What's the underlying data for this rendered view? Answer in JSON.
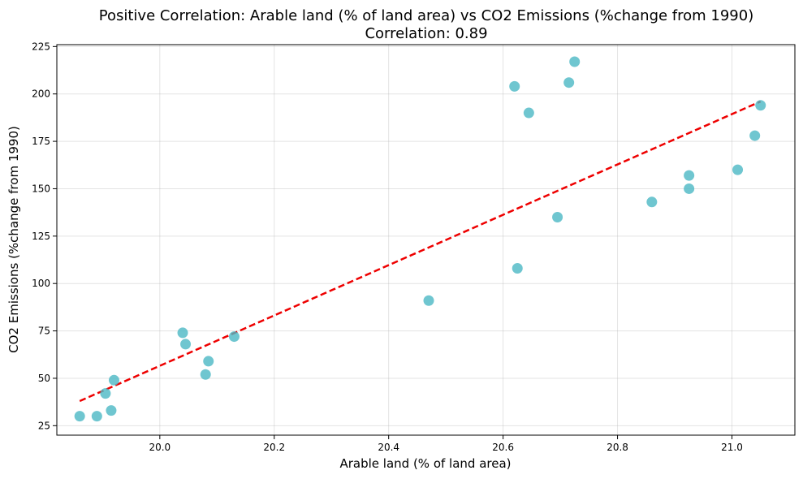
{
  "chart_data": {
    "type": "scatter",
    "title": "Positive Correlation: Arable land (% of land area) vs CO2 Emissions (%change from 1990)",
    "subtitle": "Correlation: 0.89",
    "xlabel": "Arable land (% of land area)",
    "ylabel": "CO2 Emissions (%change from 1990)",
    "xlim": [
      19.82,
      21.11
    ],
    "ylim": [
      20,
      226
    ],
    "xticks": [
      20.0,
      20.2,
      20.4,
      20.6,
      20.8,
      21.0
    ],
    "xtick_labels": [
      "20.0",
      "20.2",
      "20.4",
      "20.6",
      "20.8",
      "21.0"
    ],
    "yticks": [
      25,
      50,
      75,
      100,
      125,
      150,
      175,
      200,
      225
    ],
    "ytick_labels": [
      "25",
      "50",
      "75",
      "100",
      "125",
      "150",
      "175",
      "200",
      "225"
    ],
    "grid": true,
    "point_color": "#4bb8c4",
    "trend_color": "#ee0000",
    "points": [
      {
        "x": 19.86,
        "y": 30
      },
      {
        "x": 19.89,
        "y": 30
      },
      {
        "x": 19.905,
        "y": 42
      },
      {
        "x": 19.915,
        "y": 33
      },
      {
        "x": 19.92,
        "y": 49
      },
      {
        "x": 20.04,
        "y": 74
      },
      {
        "x": 20.045,
        "y": 68
      },
      {
        "x": 20.08,
        "y": 52
      },
      {
        "x": 20.085,
        "y": 59
      },
      {
        "x": 20.13,
        "y": 72
      },
      {
        "x": 20.47,
        "y": 91
      },
      {
        "x": 20.62,
        "y": 204
      },
      {
        "x": 20.625,
        "y": 108
      },
      {
        "x": 20.645,
        "y": 190
      },
      {
        "x": 20.695,
        "y": 135
      },
      {
        "x": 20.715,
        "y": 206
      },
      {
        "x": 20.725,
        "y": 217
      },
      {
        "x": 20.86,
        "y": 143
      },
      {
        "x": 20.925,
        "y": 157
      },
      {
        "x": 20.925,
        "y": 150
      },
      {
        "x": 21.01,
        "y": 160
      },
      {
        "x": 21.04,
        "y": 178
      },
      {
        "x": 21.05,
        "y": 194
      }
    ],
    "trendline": {
      "x": [
        19.86,
        21.05
      ],
      "y": [
        38,
        196
      ]
    }
  }
}
